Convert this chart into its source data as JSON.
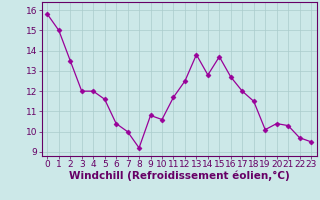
{
  "x": [
    0,
    1,
    2,
    3,
    4,
    5,
    6,
    7,
    8,
    9,
    10,
    11,
    12,
    13,
    14,
    15,
    16,
    17,
    18,
    19,
    20,
    21,
    22,
    23
  ],
  "y": [
    15.8,
    15.0,
    13.5,
    12.0,
    12.0,
    11.6,
    10.4,
    10.0,
    9.2,
    10.8,
    10.6,
    11.7,
    12.5,
    13.8,
    12.8,
    13.7,
    12.7,
    12.0,
    11.5,
    10.1,
    10.4,
    10.3,
    9.7,
    9.5
  ],
  "line_color": "#990099",
  "marker": "D",
  "marker_size": 2.5,
  "bg_color": "#cce8e8",
  "grid_color": "#aacccc",
  "title": "",
  "xlabel": "Windchill (Refroidissement éolien,°C)",
  "ylabel": "",
  "xlim": [
    -0.5,
    23.5
  ],
  "ylim": [
    8.8,
    16.4
  ],
  "yticks": [
    9,
    10,
    11,
    12,
    13,
    14,
    15,
    16
  ],
  "xticks": [
    0,
    1,
    2,
    3,
    4,
    5,
    6,
    7,
    8,
    9,
    10,
    11,
    12,
    13,
    14,
    15,
    16,
    17,
    18,
    19,
    20,
    21,
    22,
    23
  ],
  "xlabel_fontsize": 7.5,
  "tick_fontsize": 6.5,
  "label_color": "#660066",
  "spine_color": "#660066",
  "tick_color": "#660066"
}
